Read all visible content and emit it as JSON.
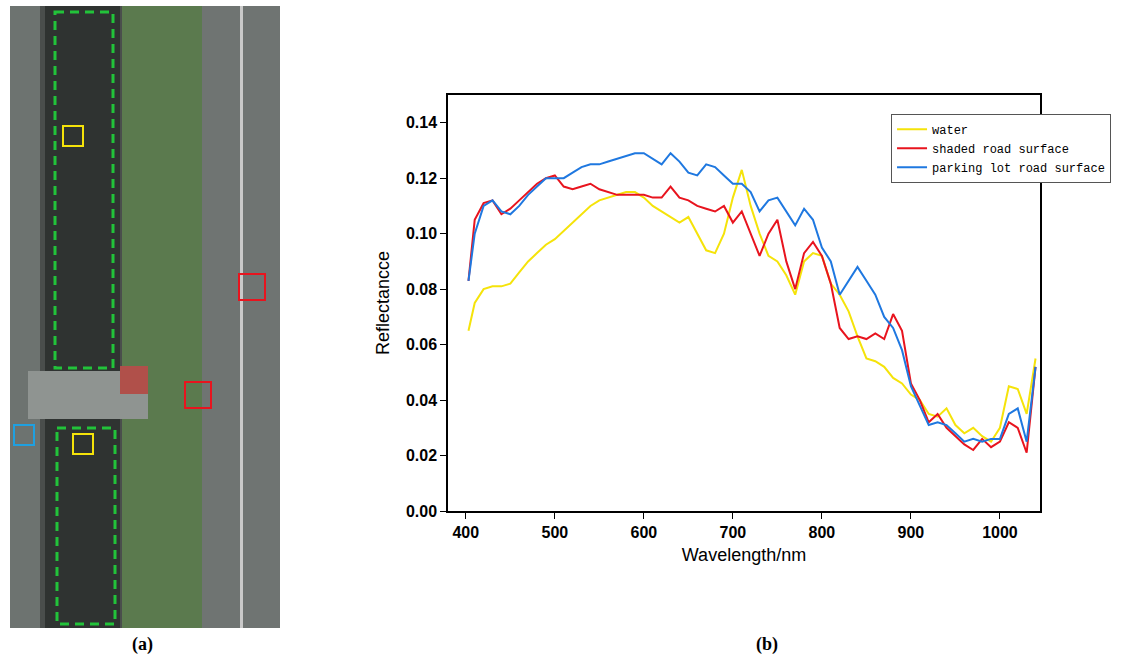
{
  "panel_labels": [
    "(a)",
    "(b)"
  ],
  "chart_data": {
    "type": "line",
    "x_label": "Wavelength/nm",
    "y_label": "Reflectancce",
    "x": [
      403,
      410,
      420,
      430,
      440,
      450,
      460,
      470,
      480,
      490,
      500,
      510,
      520,
      530,
      540,
      550,
      560,
      570,
      580,
      590,
      600,
      610,
      620,
      630,
      640,
      650,
      660,
      670,
      680,
      690,
      700,
      710,
      720,
      730,
      740,
      750,
      760,
      770,
      780,
      790,
      800,
      810,
      820,
      830,
      840,
      850,
      860,
      870,
      880,
      890,
      900,
      910,
      920,
      930,
      940,
      950,
      960,
      970,
      980,
      990,
      1000,
      1010,
      1020,
      1030,
      1040
    ],
    "series": [
      {
        "name": "water",
        "color": "#f5e30a",
        "values": [
          0.065,
          0.075,
          0.08,
          0.081,
          0.081,
          0.082,
          0.086,
          0.09,
          0.093,
          0.096,
          0.098,
          0.101,
          0.104,
          0.107,
          0.11,
          0.112,
          0.113,
          0.114,
          0.115,
          0.115,
          0.113,
          0.11,
          0.108,
          0.106,
          0.104,
          0.106,
          0.1,
          0.094,
          0.093,
          0.1,
          0.113,
          0.123,
          0.11,
          0.1,
          0.092,
          0.09,
          0.085,
          0.078,
          0.09,
          0.093,
          0.092,
          0.082,
          0.078,
          0.072,
          0.063,
          0.055,
          0.054,
          0.052,
          0.048,
          0.046,
          0.042,
          0.04,
          0.035,
          0.034,
          0.037,
          0.031,
          0.028,
          0.03,
          0.027,
          0.025,
          0.03,
          0.045,
          0.044,
          0.035,
          0.055
        ]
      },
      {
        "name": "shaded road surface",
        "color": "#e8141e",
        "values": [
          0.083,
          0.105,
          0.111,
          0.112,
          0.107,
          0.109,
          0.112,
          0.115,
          0.118,
          0.12,
          0.121,
          0.117,
          0.116,
          0.117,
          0.118,
          0.116,
          0.115,
          0.114,
          0.114,
          0.114,
          0.114,
          0.113,
          0.113,
          0.117,
          0.113,
          0.112,
          0.11,
          0.109,
          0.108,
          0.11,
          0.104,
          0.108,
          0.1,
          0.092,
          0.1,
          0.105,
          0.09,
          0.08,
          0.093,
          0.097,
          0.092,
          0.082,
          0.066,
          0.062,
          0.063,
          0.062,
          0.064,
          0.062,
          0.071,
          0.065,
          0.046,
          0.04,
          0.032,
          0.035,
          0.03,
          0.027,
          0.024,
          0.022,
          0.026,
          0.023,
          0.025,
          0.032,
          0.03,
          0.021,
          0.052
        ]
      },
      {
        "name": "parking lot road surface",
        "color": "#1f78e0",
        "values": [
          0.083,
          0.1,
          0.11,
          0.112,
          0.108,
          0.107,
          0.11,
          0.114,
          0.117,
          0.12,
          0.12,
          0.12,
          0.122,
          0.124,
          0.125,
          0.125,
          0.126,
          0.127,
          0.128,
          0.129,
          0.129,
          0.127,
          0.125,
          0.129,
          0.126,
          0.122,
          0.121,
          0.125,
          0.124,
          0.121,
          0.118,
          0.118,
          0.115,
          0.108,
          0.112,
          0.113,
          0.108,
          0.103,
          0.109,
          0.105,
          0.095,
          0.09,
          0.078,
          0.083,
          0.088,
          0.083,
          0.078,
          0.07,
          0.066,
          0.058,
          0.045,
          0.038,
          0.031,
          0.032,
          0.031,
          0.028,
          0.025,
          0.026,
          0.025,
          0.026,
          0.026,
          0.035,
          0.037,
          0.025,
          0.052
        ]
      }
    ],
    "xlim": [
      380,
      1045
    ],
    "xticks": [
      400,
      500,
      600,
      700,
      800,
      900,
      1000
    ],
    "ylim": [
      0,
      0.15
    ],
    "yticks": [
      {
        "value": 0,
        "label": "0.00"
      },
      0.02,
      0.04,
      0.06,
      0.08,
      {
        "value": 0.1,
        "label": "0.10"
      },
      0.12,
      0.14
    ],
    "grid": false,
    "legend": "top-right"
  }
}
